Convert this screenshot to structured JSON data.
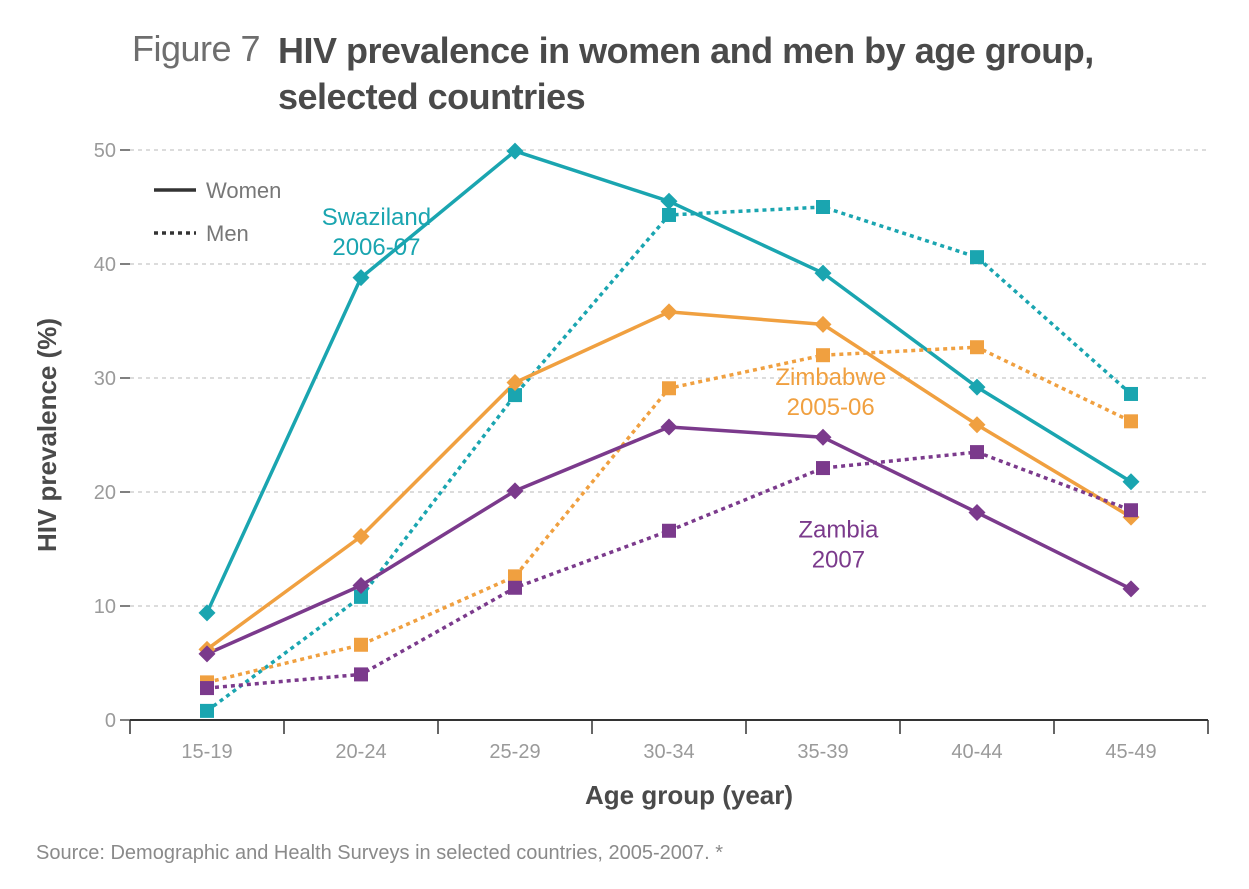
{
  "figure": {
    "label": "Figure 7",
    "title": "HIV prevalence in women and men by age group, selected countries",
    "source": "Source: Demographic and Health Surveys in selected countries, 2005-2007. *"
  },
  "chart_data": {
    "type": "line",
    "xlabel": "Age group (year)",
    "ylabel": "HIV prevalence (%)",
    "categories": [
      "15-19",
      "20-24",
      "25-29",
      "30-34",
      "35-39",
      "40-44",
      "45-49"
    ],
    "ylim": [
      0,
      50
    ],
    "yticks": [
      "0",
      "10",
      "20",
      "30",
      "40",
      "50"
    ],
    "grid": true,
    "legend": {
      "position": "top-left",
      "items": [
        {
          "label": "Women",
          "style": "solid"
        },
        {
          "label": "Men",
          "style": "dotted"
        }
      ]
    },
    "annotations": [
      {
        "lines": [
          "Swaziland",
          "2006-07"
        ],
        "color": "#1aa5b0",
        "x": 1.1,
        "y": 43.4
      },
      {
        "lines": [
          "Zimbabwe",
          "2005-06"
        ],
        "color": "#f0a040",
        "x": 4.05,
        "y": 29.4
      },
      {
        "lines": [
          "Zambia",
          "2007"
        ],
        "color": "#7b3a8c",
        "x": 4.1,
        "y": 16.0
      }
    ],
    "series": [
      {
        "country": "Swaziland",
        "sex": "Women",
        "color": "#1aa5b0",
        "style": "solid",
        "marker": "diamond",
        "values": [
          9.4,
          38.8,
          49.9,
          45.5,
          39.2,
          29.2,
          20.9
        ]
      },
      {
        "country": "Swaziland",
        "sex": "Men",
        "color": "#1aa5b0",
        "style": "dotted",
        "marker": "square",
        "values": [
          0.8,
          10.8,
          28.5,
          44.3,
          45.0,
          40.6,
          28.6
        ]
      },
      {
        "country": "Zimbabwe",
        "sex": "Women",
        "color": "#f0a040",
        "style": "solid",
        "marker": "diamond",
        "values": [
          6.2,
          16.1,
          29.6,
          35.8,
          34.7,
          25.9,
          17.8
        ]
      },
      {
        "country": "Zimbabwe",
        "sex": "Men",
        "color": "#f0a040",
        "style": "dotted",
        "marker": "square",
        "values": [
          3.3,
          6.6,
          12.6,
          29.1,
          32.0,
          32.7,
          26.2
        ]
      },
      {
        "country": "Zambia",
        "sex": "Women",
        "color": "#7b3a8c",
        "style": "solid",
        "marker": "diamond",
        "values": [
          5.8,
          11.8,
          20.1,
          25.7,
          24.8,
          18.2,
          11.5
        ]
      },
      {
        "country": "Zambia",
        "sex": "Men",
        "color": "#7b3a8c",
        "style": "dotted",
        "marker": "square",
        "values": [
          2.8,
          4.0,
          11.6,
          16.6,
          22.1,
          23.5,
          18.4
        ]
      }
    ]
  }
}
